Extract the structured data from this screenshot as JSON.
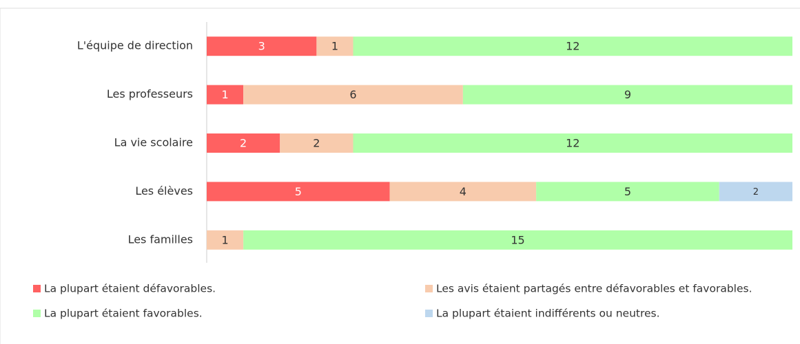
{
  "chart_data": {
    "type": "stacked_bar_horizontal",
    "categories": [
      "L'équipe de direction",
      "Les professeurs",
      "La vie scolaire",
      "Les élèves",
      "Les familles"
    ],
    "series": [
      {
        "name": "La plupart étaient défavorables.",
        "color": "#ff6161",
        "values": [
          3,
          1,
          2,
          5,
          0
        ]
      },
      {
        "name": "Les avis étaient partagés entre défavorables et favorables.",
        "color": "#f8cbad",
        "values": [
          1,
          6,
          2,
          4,
          1
        ]
      },
      {
        "name": "La plupart étaient favorables.",
        "color": "#b0ffa8",
        "values": [
          12,
          9,
          12,
          5,
          15
        ]
      },
      {
        "name": "La plupart étaient indifférents ou neutres.",
        "color": "#bdd7ee",
        "values": [
          0,
          0,
          0,
          2,
          0
        ]
      }
    ],
    "legend": "bottom"
  }
}
